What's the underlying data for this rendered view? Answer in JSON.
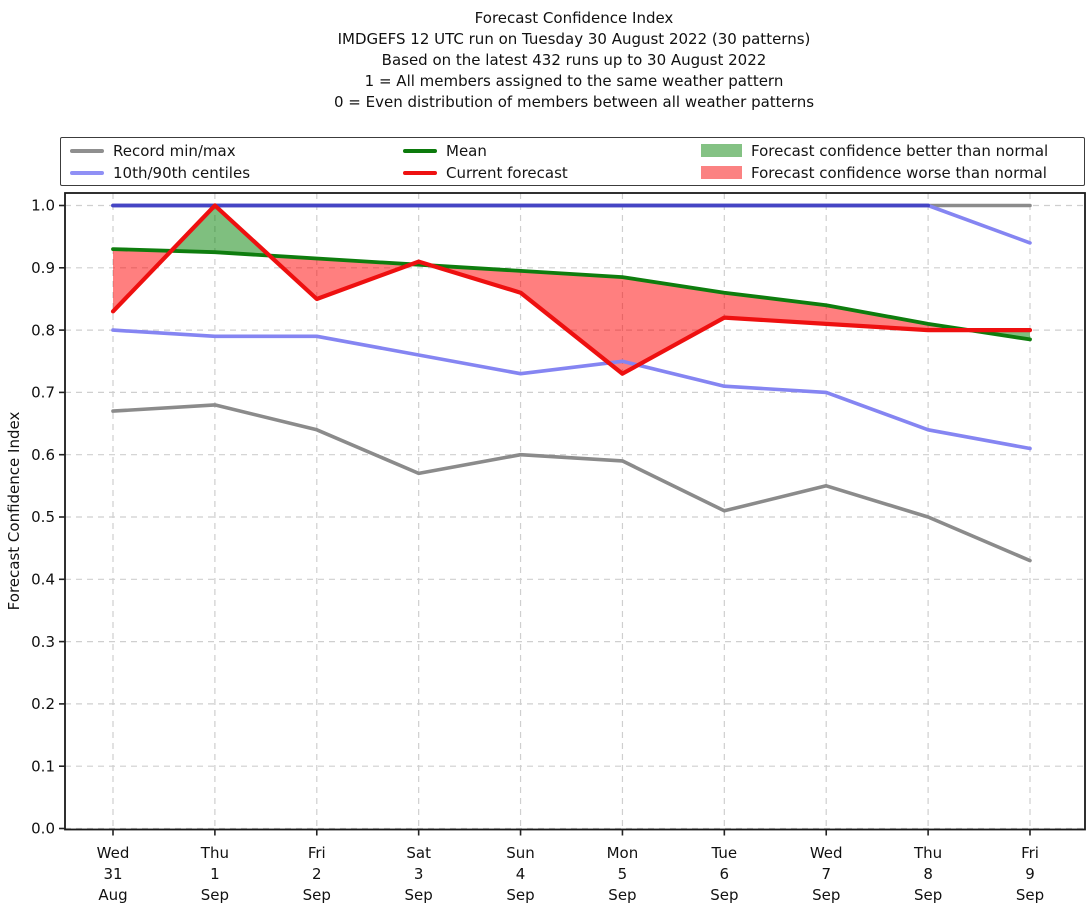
{
  "title": {
    "lines": [
      "Forecast Confidence Index",
      "IMDGEFS 12 UTC run on Tuesday 30 August 2022 (30 patterns)",
      "Based on the latest 432 runs up to 30 August 2022",
      "1 = All members assigned to the same weather pattern",
      "0 = Even distribution of members between all weather patterns"
    ]
  },
  "legend": {
    "items": [
      {
        "label": "Record min/max",
        "swatch": "line",
        "color": "#8f8f8f"
      },
      {
        "label": "10th/90th centiles",
        "swatch": "line",
        "color": "#9090f5"
      },
      {
        "label": "Mean",
        "swatch": "line",
        "color": "#0c7a0c"
      },
      {
        "label": "Current forecast",
        "swatch": "line",
        "color": "#ee1111"
      },
      {
        "label": "Forecast confidence better than normal",
        "swatch": "patch",
        "color": "#84c284"
      },
      {
        "label": "Forecast confidence worse than normal",
        "swatch": "patch",
        "color": "#fb8282"
      }
    ]
  },
  "chart_data": {
    "type": "line",
    "title": "Forecast Confidence Index",
    "ylabel": "Forecast Confidence Index",
    "ylim": [
      0.0,
      1.02
    ],
    "yticks": [
      0.0,
      0.1,
      0.2,
      0.3,
      0.4,
      0.5,
      0.6,
      0.7,
      0.8,
      0.9,
      1.0
    ],
    "grid": true,
    "legend_position": "top",
    "x_categories": [
      {
        "day": "Wed",
        "date": "31",
        "month": "Aug"
      },
      {
        "day": "Thu",
        "date": "1",
        "month": "Sep"
      },
      {
        "day": "Fri",
        "date": "2",
        "month": "Sep"
      },
      {
        "day": "Sat",
        "date": "3",
        "month": "Sep"
      },
      {
        "day": "Sun",
        "date": "4",
        "month": "Sep"
      },
      {
        "day": "Mon",
        "date": "5",
        "month": "Sep"
      },
      {
        "day": "Tue",
        "date": "6",
        "month": "Sep"
      },
      {
        "day": "Wed",
        "date": "7",
        "month": "Sep"
      },
      {
        "day": "Thu",
        "date": "8",
        "month": "Sep"
      },
      {
        "day": "Fri",
        "date": "9",
        "month": "Sep"
      }
    ],
    "series": [
      {
        "id": "record_max",
        "name": "Record max",
        "color": "#8b8b8b",
        "values": [
          1.0,
          1.0,
          1.0,
          1.0,
          1.0,
          1.0,
          1.0,
          1.0,
          1.0,
          1.0
        ]
      },
      {
        "id": "record_min",
        "name": "Record min",
        "color": "#8b8b8b",
        "values": [
          0.67,
          0.68,
          0.64,
          0.57,
          0.6,
          0.59,
          0.51,
          0.55,
          0.5,
          0.43
        ]
      },
      {
        "id": "p90",
        "name": "90th centile",
        "color": "#8585f2",
        "values": [
          1.0,
          1.0,
          1.0,
          1.0,
          1.0,
          1.0,
          1.0,
          1.0,
          1.0,
          0.94
        ]
      },
      {
        "id": "p10",
        "name": "10th centile",
        "color": "#8585f2",
        "values": [
          0.8,
          0.79,
          0.79,
          0.76,
          0.73,
          0.75,
          0.71,
          0.7,
          0.64,
          0.61
        ]
      },
      {
        "id": "mean",
        "name": "Mean",
        "color": "#0e7d0e",
        "values": [
          0.93,
          0.925,
          0.915,
          0.905,
          0.895,
          0.885,
          0.86,
          0.84,
          0.81,
          0.785
        ]
      },
      {
        "id": "current",
        "name": "Current forecast",
        "color": "#ee1010",
        "values": [
          0.83,
          1.0,
          0.85,
          0.91,
          0.86,
          0.73,
          0.82,
          0.81,
          0.8,
          0.8
        ]
      }
    ],
    "fills": {
      "between": [
        "current",
        "mean"
      ],
      "better_color": "#008000",
      "worse_color": "#ff0000",
      "opacity": 0.5
    }
  }
}
